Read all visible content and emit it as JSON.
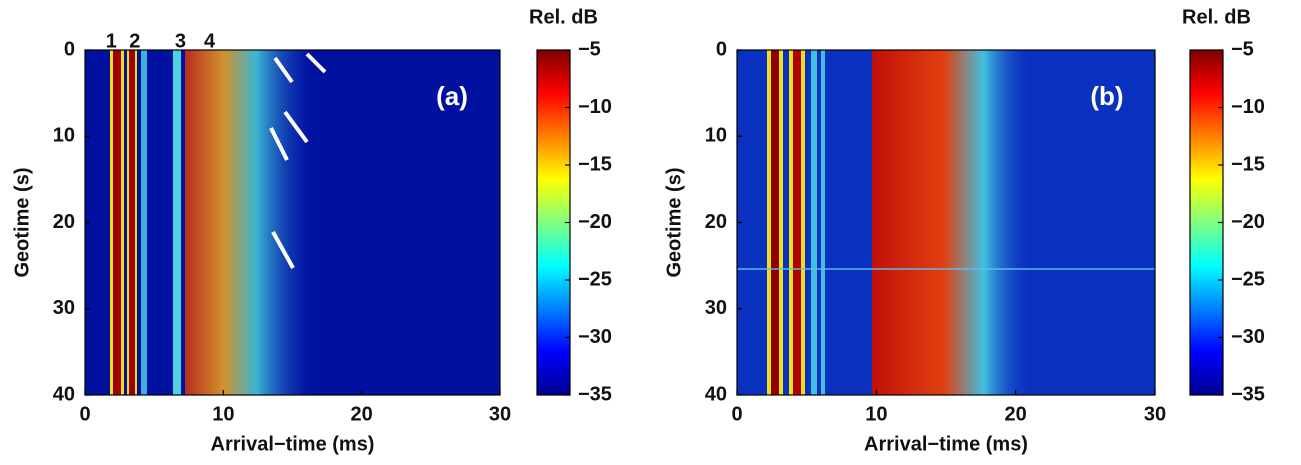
{
  "chart_data": [
    {
      "type": "heatmap",
      "panel_label": "(a)",
      "xlabel": "Arrival−time (ms)",
      "ylabel": "Geotime (s)",
      "xlim": [
        0,
        30
      ],
      "xticks": [
        0,
        10,
        20,
        30
      ],
      "ylim": [
        0,
        40
      ],
      "yticks": [
        0,
        10,
        20,
        30,
        40
      ],
      "y_inverted": true,
      "annotations": [
        {
          "text": "1",
          "x": 1.9
        },
        {
          "text": "2",
          "x": 3.6
        },
        {
          "text": "3",
          "x": 6.9
        },
        {
          "text": "4",
          "x": 9.0
        }
      ],
      "colorbar": {
        "label": "Rel. dB",
        "lim": [
          -35,
          -5
        ],
        "ticks": [
          {
            "value": -5,
            "label": "−5"
          },
          {
            "value": -10,
            "label": "−10"
          },
          {
            "value": -15,
            "label": "−15"
          },
          {
            "value": -20,
            "label": "−20"
          },
          {
            "value": -25,
            "label": "−25"
          },
          {
            "value": -30,
            "label": "−30"
          },
          {
            "value": -35,
            "label": "−35"
          }
        ]
      }
    },
    {
      "type": "heatmap",
      "panel_label": "(b)",
      "xlabel": "Arrival−time (ms)",
      "ylabel": "Geotime (s)",
      "xlim": [
        0,
        30
      ],
      "xticks": [
        0,
        10,
        20,
        30
      ],
      "ylim": [
        0,
        40
      ],
      "yticks": [
        0,
        10,
        20,
        30,
        40
      ],
      "y_inverted": true,
      "colorbar": {
        "label": "Rel. dB",
        "lim": [
          -35,
          -5
        ],
        "ticks": [
          {
            "value": -5,
            "label": "−5"
          },
          {
            "value": -10,
            "label": "−10"
          },
          {
            "value": -15,
            "label": "−15"
          },
          {
            "value": -20,
            "label": "−20"
          },
          {
            "value": -25,
            "label": "−25"
          },
          {
            "value": -30,
            "label": "−30"
          },
          {
            "value": -35,
            "label": "−35"
          }
        ]
      }
    }
  ]
}
